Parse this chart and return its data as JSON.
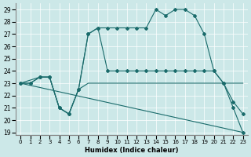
{
  "xlabel": "Humidex (Indice chaleur)",
  "xlim": [
    -0.5,
    23.5
  ],
  "ylim": [
    18.8,
    29.5
  ],
  "yticks": [
    19,
    20,
    21,
    22,
    23,
    24,
    25,
    26,
    27,
    28,
    29
  ],
  "xticks": [
    0,
    1,
    2,
    3,
    4,
    5,
    6,
    7,
    8,
    9,
    10,
    11,
    12,
    13,
    14,
    15,
    16,
    17,
    18,
    19,
    20,
    21,
    22,
    23
  ],
  "bg_color": "#cce8e8",
  "line_color": "#1a6b6b",
  "lines": [
    {
      "x": [
        0,
        1,
        2,
        3,
        4,
        5,
        6,
        7,
        8,
        9,
        10,
        11,
        12,
        13,
        14,
        15,
        16,
        17,
        18,
        19,
        20,
        21,
        22,
        23
      ],
      "y": [
        23,
        23,
        23.5,
        23.5,
        21,
        20.5,
        22.5,
        27,
        27.5,
        27.5,
        27.5,
        27.5,
        27.5,
        27.5,
        29,
        28.5,
        29,
        29,
        28.5,
        27,
        24,
        23,
        21,
        19
      ],
      "marker": "D",
      "markersize": 2.0
    },
    {
      "x": [
        0,
        1,
        2,
        3,
        4,
        5,
        6,
        7,
        8,
        9,
        10,
        11,
        12,
        13,
        14,
        15,
        16,
        17,
        18,
        19,
        20,
        21,
        22,
        23
      ],
      "y": [
        23,
        23,
        23.5,
        23.5,
        21,
        20.5,
        22.5,
        27,
        27.5,
        24,
        24,
        24,
        24,
        24,
        24,
        24,
        24,
        24,
        24,
        24,
        24,
        23,
        21.5,
        20.5
      ],
      "marker": "D",
      "markersize": 2.0
    },
    {
      "x": [
        0,
        2,
        3,
        4,
        5,
        6,
        7,
        8,
        9,
        10,
        11,
        12,
        13,
        14,
        15,
        16,
        17,
        18,
        19,
        20,
        21,
        22,
        23
      ],
      "y": [
        23,
        23.5,
        23.5,
        21,
        20.5,
        22.5,
        23,
        23,
        23,
        23,
        23,
        23,
        23,
        23,
        23,
        23,
        23,
        23,
        23,
        23,
        23,
        23,
        23
      ],
      "marker": null,
      "markersize": 0
    },
    {
      "x": [
        0,
        23
      ],
      "y": [
        23,
        19
      ],
      "marker": null,
      "markersize": 0
    }
  ]
}
